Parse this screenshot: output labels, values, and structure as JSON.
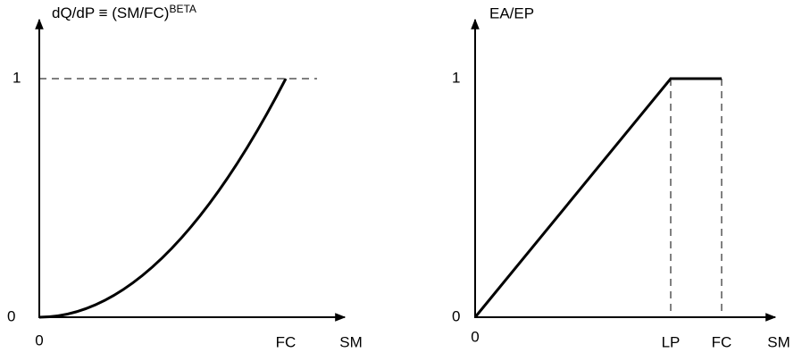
{
  "left_panel": {
    "title": "dQ/dP ≡ (SM/FC)",
    "title_superscript": "BETA",
    "y_label_top": "1",
    "y_label_origin": "0",
    "x_label_origin": "0",
    "x_marker": "FC",
    "x_axis_label": "SM"
  },
  "right_panel": {
    "title": "EA/EP",
    "y_label_top": "1",
    "y_label_origin": "0",
    "x_label_origin": "0",
    "x_marker_1": "LP",
    "x_marker_2": "FC",
    "x_axis_label": "SM"
  }
}
